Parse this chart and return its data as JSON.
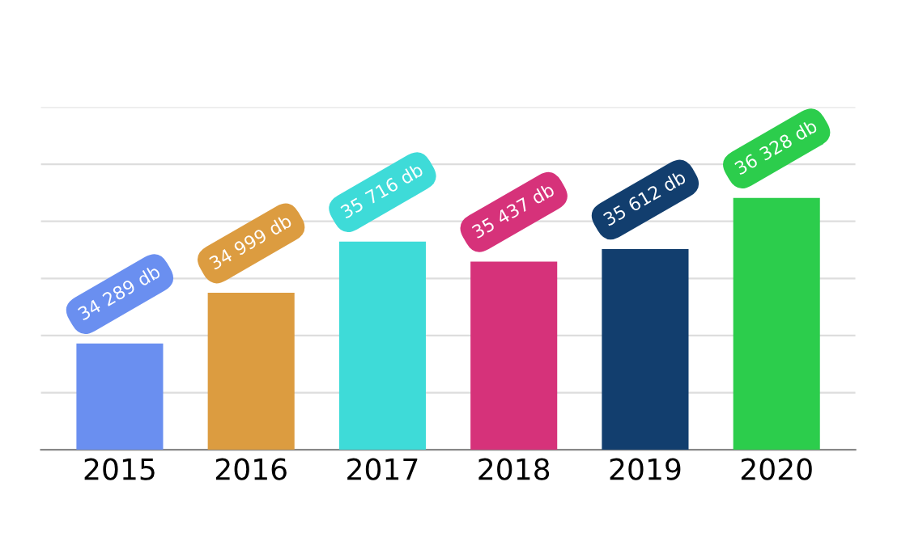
{
  "chart_data": {
    "type": "bar",
    "categories": [
      "2015",
      "2016",
      "2017",
      "2018",
      "2019",
      "2020"
    ],
    "values": [
      34289,
      34999,
      35716,
      35437,
      35612,
      36328
    ],
    "value_labels": [
      "34 289 db",
      "34 999 db",
      "35 716 db",
      "35 437 db",
      "35 612 db",
      "36 328 db"
    ],
    "colors": [
      "#6a8ff0",
      "#dc9c40",
      "#3edbd8",
      "#d6327a",
      "#123e6e",
      "#2ccd4c"
    ],
    "ylim": [
      32800,
      37600
    ],
    "yticks": [
      {
        "value": 33600,
        "label": null
      },
      {
        "value": 34400,
        "label": null
      },
      {
        "value": 35200,
        "label": null
      },
      {
        "value": 36000,
        "label": null
      },
      {
        "value": 36800,
        "label": null
      },
      {
        "value": 37600,
        "label": null
      }
    ],
    "grid": "y",
    "tick_labels": "x"
  }
}
